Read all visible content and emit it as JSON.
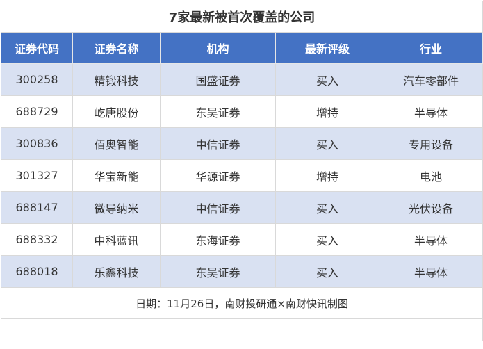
{
  "title": "7家最新被首次覆盖的公司",
  "columns": [
    "证券代码",
    "证券名称",
    "机构",
    "最新评级",
    "行业"
  ],
  "rows": [
    [
      "300258",
      "精锻科技",
      "国盛证券",
      "买入",
      "汽车零部件"
    ],
    [
      "688729",
      "屹唐股份",
      "东吴证券",
      "增持",
      "半导体"
    ],
    [
      "300836",
      "佰奥智能",
      "中信证券",
      "买入",
      "专用设备"
    ],
    [
      "301327",
      "华宝新能",
      "华源证券",
      "增持",
      "电池"
    ],
    [
      "688147",
      "微导纳米",
      "中信证券",
      "买入",
      "光伏设备"
    ],
    [
      "688332",
      "中科蓝讯",
      "东海证券",
      "买入",
      "半导体"
    ],
    [
      "688018",
      "乐鑫科技",
      "东吴证券",
      "买入",
      "半导体"
    ]
  ],
  "footer": "日期：11月26日，南财投研通×南财快讯制图",
  "colors": {
    "header_bg": "#4472C4",
    "stripe_bg": "#D9E1F2"
  }
}
